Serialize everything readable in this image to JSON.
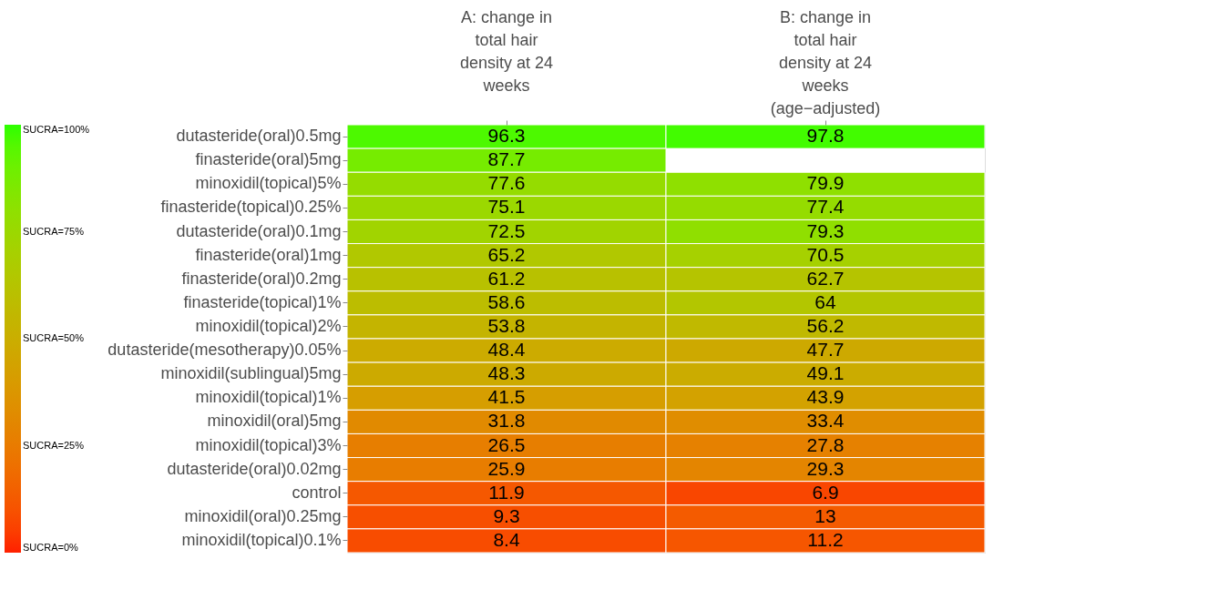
{
  "chart_data": {
    "type": "heatmap",
    "categories": [
      "A: change in total hair density at 24 weeks",
      "B: change in total hair density at 24 weeks (age−adjusted)"
    ],
    "y_categories": [
      "dutasteride(oral)0.5mg",
      "finasteride(oral)5mg",
      "minoxidil(topical)5%",
      "finasteride(topical)0.25%",
      "dutasteride(oral)0.1mg",
      "finasteride(oral)1mg",
      "finasteride(oral)0.2mg",
      "finasteride(topical)1%",
      "minoxidil(topical)2%",
      "dutasteride(mesotherapy)0.05%",
      "minoxidil(sublingual)5mg",
      "minoxidil(topical)1%",
      "minoxidil(oral)5mg",
      "minoxidil(topical)3%",
      "dutasteride(oral)0.02mg",
      "control",
      "minoxidil(oral)0.25mg",
      "minoxidil(topical)0.1%"
    ],
    "cells": [
      [
        96.3,
        97.8
      ],
      [
        87.7,
        null
      ],
      [
        77.6,
        79.9
      ],
      [
        75.1,
        77.4
      ],
      [
        72.5,
        79.3
      ],
      [
        65.2,
        70.5
      ],
      [
        61.2,
        62.7
      ],
      [
        58.6,
        64
      ],
      [
        53.8,
        56.2
      ],
      [
        48.4,
        47.7
      ],
      [
        48.3,
        49.1
      ],
      [
        41.5,
        43.9
      ],
      [
        31.8,
        33.4
      ],
      [
        26.5,
        27.8
      ],
      [
        25.9,
        29.3
      ],
      [
        11.9,
        6.9
      ],
      [
        9.3,
        13
      ],
      [
        8.4,
        11.2
      ]
    ],
    "data_labels": true,
    "clim": [
      0,
      100
    ],
    "cticks": [
      {
        "value": 0,
        "label": "SUCRA=0%"
      },
      {
        "value": 25,
        "label": "SUCRA=25%"
      },
      {
        "value": 50,
        "label": "SUCRA=50%"
      },
      {
        "value": 75,
        "label": "SUCRA=75%"
      },
      {
        "value": 100,
        "label": "SUCRA=100%"
      }
    ]
  }
}
